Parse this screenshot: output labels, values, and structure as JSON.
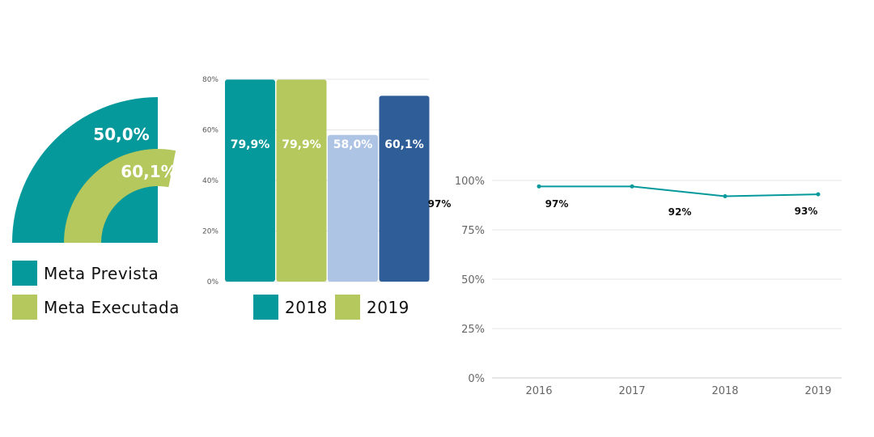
{
  "colors": {
    "teal": "#06999b",
    "green": "#b5c85d",
    "light_blue": "#adc4e4",
    "navy": "#2e5d98",
    "grid": "#e6e6e6",
    "axis_text": "#555555",
    "line_axis_text": "#666666"
  },
  "chart_data": [
    {
      "type": "radial-bar",
      "rings": [
        {
          "name": "Meta Prevista",
          "value": 50.0,
          "label": "50,0%"
        },
        {
          "name": "Meta Executada",
          "value": 60.1,
          "label": "60,1%"
        }
      ],
      "legend": [
        "Meta Prevista",
        "Meta Executada"
      ]
    },
    {
      "type": "bar",
      "ylim": [
        0,
        80
      ],
      "yticks": [
        "0%",
        "20%",
        "40%",
        "60%",
        "80%"
      ],
      "bars": [
        {
          "value": 79.9,
          "label": "79,9%",
          "color_key": "teal"
        },
        {
          "value": 79.9,
          "label": "79,9%",
          "color_key": "green"
        },
        {
          "value": 58.0,
          "label": "58,0%",
          "color_key": "light_blue"
        },
        {
          "value": 60.1,
          "label": "60,1%",
          "color_key": "navy",
          "display_value": 73.5
        }
      ],
      "side_label": "97%",
      "legend": [
        "2018",
        "2019"
      ]
    },
    {
      "type": "line",
      "x": [
        "2016",
        "2017",
        "2018",
        "2019"
      ],
      "values": [
        97,
        97,
        92,
        93
      ],
      "labels": [
        "97%",
        "92%",
        "93%"
      ],
      "ylim": [
        0,
        100
      ],
      "yticks": [
        "0%",
        "25%",
        "50%",
        "75%",
        "100%"
      ]
    }
  ]
}
